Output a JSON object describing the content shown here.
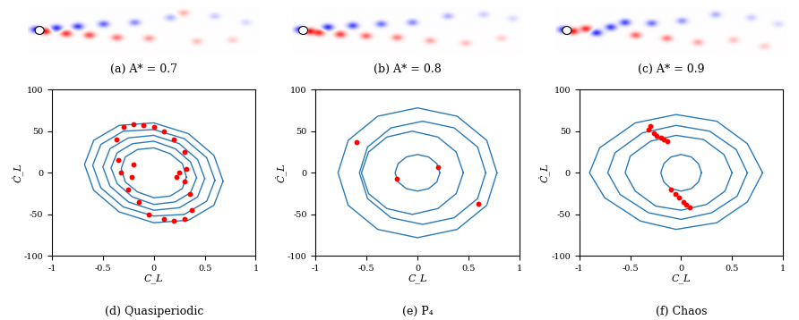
{
  "chart_data": [
    {
      "type": "field",
      "caption": "(a) A* = 0.7",
      "xlim": [
        0,
        26
      ],
      "ylim": [
        -3,
        3
      ],
      "tick_labels": false,
      "cylinder": {
        "x": 1.3,
        "y": 0,
        "radius": 0.5
      },
      "vortices": [
        {
          "x": 0.9,
          "y": 0.1,
          "strength": -0.9
        },
        {
          "x": 1.9,
          "y": -0.1,
          "strength": 1.0
        },
        {
          "x": 3.2,
          "y": 0.3,
          "strength": -0.8
        },
        {
          "x": 4.3,
          "y": -0.4,
          "strength": 0.8
        },
        {
          "x": 5.6,
          "y": 0.5,
          "strength": -0.75
        },
        {
          "x": 6.9,
          "y": -0.6,
          "strength": 0.7
        },
        {
          "x": 8.5,
          "y": 0.8,
          "strength": -0.6
        },
        {
          "x": 10.0,
          "y": -0.9,
          "strength": 0.55
        },
        {
          "x": 12.0,
          "y": 1.0,
          "strength": -0.45
        },
        {
          "x": 13.6,
          "y": -1.0,
          "strength": 0.4
        },
        {
          "x": 16.0,
          "y": 1.6,
          "strength": -0.3
        },
        {
          "x": 17.5,
          "y": 2.2,
          "strength": 0.3
        },
        {
          "x": 19.0,
          "y": -1.4,
          "strength": 0.25
        },
        {
          "x": 21.0,
          "y": 1.8,
          "strength": -0.2
        },
        {
          "x": 23.0,
          "y": -1.2,
          "strength": 0.2
        },
        {
          "x": 24.5,
          "y": 1.0,
          "strength": -0.15
        }
      ]
    },
    {
      "type": "field",
      "caption": "(b) A* = 0.8",
      "xlim": [
        0,
        26
      ],
      "ylim": [
        -3,
        3
      ],
      "tick_labels": false,
      "cylinder": {
        "x": 1.3,
        "y": 0,
        "radius": 0.5
      },
      "vortices": [
        {
          "x": 0.9,
          "y": 0.1,
          "strength": -0.9
        },
        {
          "x": 1.9,
          "y": -0.1,
          "strength": 1.0
        },
        {
          "x": 3.0,
          "y": -0.3,
          "strength": 0.8
        },
        {
          "x": 4.0,
          "y": 0.4,
          "strength": -0.8
        },
        {
          "x": 5.4,
          "y": -0.5,
          "strength": 0.75
        },
        {
          "x": 6.8,
          "y": 0.6,
          "strength": -0.7
        },
        {
          "x": 8.3,
          "y": -0.7,
          "strength": 0.6
        },
        {
          "x": 10.0,
          "y": 0.8,
          "strength": -0.55
        },
        {
          "x": 11.8,
          "y": -0.9,
          "strength": 0.5
        },
        {
          "x": 13.5,
          "y": 1.0,
          "strength": -0.45
        },
        {
          "x": 15.5,
          "y": -1.3,
          "strength": 0.35
        },
        {
          "x": 17.5,
          "y": 1.8,
          "strength": -0.3
        },
        {
          "x": 19.5,
          "y": -1.6,
          "strength": 0.25
        },
        {
          "x": 21.5,
          "y": 2.0,
          "strength": -0.2
        },
        {
          "x": 23.5,
          "y": -1.0,
          "strength": 0.2
        },
        {
          "x": 24.8,
          "y": 1.5,
          "strength": -0.15
        }
      ]
    },
    {
      "type": "field",
      "caption": "(c) A* = 0.9",
      "xlim": [
        0,
        26
      ],
      "ylim": [
        -3,
        3
      ],
      "tick_labels": false,
      "cylinder": {
        "x": 1.3,
        "y": 0,
        "radius": 0.5
      },
      "vortices": [
        {
          "x": 0.9,
          "y": 0.1,
          "strength": -0.9
        },
        {
          "x": 1.9,
          "y": -0.1,
          "strength": 1.0
        },
        {
          "x": 3.4,
          "y": 0.2,
          "strength": 0.85
        },
        {
          "x": 4.6,
          "y": -0.3,
          "strength": -0.8
        },
        {
          "x": 6.2,
          "y": 0.4,
          "strength": -0.75
        },
        {
          "x": 7.8,
          "y": 1.0,
          "strength": -0.7
        },
        {
          "x": 9.0,
          "y": -0.6,
          "strength": 0.6
        },
        {
          "x": 10.8,
          "y": 0.9,
          "strength": -0.55
        },
        {
          "x": 12.5,
          "y": -1.0,
          "strength": 0.5
        },
        {
          "x": 14.2,
          "y": 1.2,
          "strength": -0.4
        },
        {
          "x": 16.0,
          "y": -1.5,
          "strength": 0.35
        },
        {
          "x": 18.0,
          "y": 2.0,
          "strength": -0.3
        },
        {
          "x": 20.0,
          "y": -1.2,
          "strength": 0.25
        },
        {
          "x": 22.0,
          "y": 1.6,
          "strength": -0.2
        },
        {
          "x": 23.5,
          "y": -2.0,
          "strength": 0.2
        },
        {
          "x": 25.0,
          "y": 0.8,
          "strength": -0.15
        }
      ]
    },
    {
      "type": "phase",
      "caption": "(d) Quasiperiodic",
      "x_label": "C_L",
      "y_label": "Ċ_L",
      "xlim": [
        -1,
        1
      ],
      "xticks": [
        -1,
        -0.5,
        0,
        0.5,
        1
      ],
      "ylim": [
        -100,
        100
      ],
      "yticks": [
        -100,
        -50,
        0,
        50,
        100
      ],
      "color": "#2a7ab9",
      "loops": [
        {
          "x": [
            0.68,
            0.59,
            0.34,
            0,
            -0.34,
            -0.59,
            -0.68,
            -0.59,
            -0.34,
            0,
            0.34,
            0.59
          ],
          "y": [
            -10,
            21,
            47,
            60,
            57,
            39,
            10,
            -21,
            -47,
            -60,
            -57,
            -39
          ]
        },
        {
          "x": [
            0.6,
            0.52,
            0.3,
            0,
            -0.3,
            -0.52,
            -0.6,
            -0.52,
            -0.3,
            0,
            0.3,
            0.52
          ],
          "y": [
            -9,
            18,
            41,
            52,
            50,
            34,
            9,
            -18,
            -41,
            -52,
            -50,
            -34
          ]
        },
        {
          "x": [
            0.5,
            0.43,
            0.25,
            0,
            -0.25,
            -0.43,
            -0.5,
            -0.43,
            -0.25,
            0,
            0.25,
            0.43
          ],
          "y": [
            -7,
            16,
            35,
            45,
            42,
            29,
            7,
            -16,
            -35,
            -45,
            -42,
            -29
          ]
        },
        {
          "x": [
            0.42,
            0.36,
            0.21,
            0,
            -0.21,
            -0.36,
            -0.42,
            -0.36,
            -0.21,
            0,
            0.21,
            0.36
          ],
          "y": [
            -6,
            13,
            29,
            38,
            35,
            24,
            6,
            -13,
            -29,
            -38,
            -35,
            -24
          ]
        },
        {
          "x": [
            0.32,
            0.28,
            0.16,
            0,
            -0.16,
            -0.28,
            -0.32,
            -0.28,
            -0.16,
            0,
            0.16,
            0.28
          ],
          "y": [
            -5,
            11,
            23,
            30,
            28,
            19,
            5,
            -11,
            -23,
            -30,
            -28,
            -19
          ]
        }
      ],
      "points": {
        "color": "#ff0000",
        "x": [
          -0.3,
          -0.2,
          -0.1,
          0,
          0.1,
          0.2,
          0.3,
          0.32,
          0.3,
          0.35,
          0.37,
          0.3,
          0.2,
          0.1,
          -0.05,
          -0.15,
          -0.25,
          -0.32,
          -0.35,
          -0.37,
          -0.2,
          -0.22,
          0.22,
          0.25
        ],
        "y": [
          55,
          58,
          57,
          55,
          50,
          40,
          25,
          5,
          -10,
          -25,
          -45,
          -55,
          -58,
          -56,
          -50,
          -35,
          -20,
          0,
          15,
          40,
          10,
          -5,
          -5,
          0
        ]
      }
    },
    {
      "type": "phase",
      "caption": "(e) P₄",
      "x_label": "C_L",
      "y_label": "Ċ_L",
      "xlim": [
        -1,
        1
      ],
      "xticks": [
        -1,
        -0.5,
        0,
        0.5,
        1
      ],
      "ylim": [
        -100,
        100
      ],
      "yticks": [
        -100,
        -50,
        0,
        50,
        100
      ],
      "color": "#2a7ab9",
      "loops": [
        {
          "x": [
            0.78,
            0.68,
            0.39,
            0,
            -0.39,
            -0.68,
            -0.78,
            -0.68,
            -0.39,
            0,
            0.39,
            0.68
          ],
          "y": [
            0,
            39,
            68,
            78,
            68,
            39,
            0,
            -39,
            -68,
            -78,
            -68,
            -39
          ]
        },
        {
          "x": [
            0.67,
            0.59,
            0.36,
            0.05,
            -0.26,
            -0.49,
            -0.57,
            -0.49,
            -0.26,
            0.05,
            0.36,
            0.59
          ],
          "y": [
            0,
            31,
            54,
            62,
            54,
            31,
            0,
            -31,
            -54,
            -62,
            -54,
            -31
          ]
        },
        {
          "x": [
            0.45,
            0.38,
            0.2,
            -0.05,
            -0.3,
            -0.48,
            -0.55,
            -0.48,
            -0.3,
            -0.05,
            0.2,
            0.38
          ],
          "y": [
            0,
            25,
            43,
            50,
            43,
            25,
            0,
            -25,
            -43,
            -50,
            -43,
            -25
          ]
        },
        {
          "x": [
            0.22,
            0.19,
            0.11,
            0,
            -0.11,
            -0.19,
            -0.22,
            -0.19,
            -0.11,
            0,
            0.11,
            0.19
          ],
          "y": [
            0,
            11,
            19,
            22,
            19,
            11,
            0,
            -11,
            -19,
            -22,
            -19,
            -11
          ]
        }
      ],
      "points": {
        "color": "#ff0000",
        "x": [
          -0.6,
          -0.2,
          0.2,
          0.6
        ],
        "y": [
          37,
          -7,
          7,
          -37
        ]
      }
    },
    {
      "type": "phase",
      "caption": "(f) Chaos",
      "x_label": "C_L",
      "y_label": "Ċ_L",
      "xlim": [
        -1,
        1
      ],
      "xticks": [
        -1,
        -0.5,
        0,
        0.5,
        1
      ],
      "ylim": [
        -100,
        100
      ],
      "yticks": [
        -100,
        -50,
        0,
        50,
        100
      ],
      "color": "#2a7ab9",
      "loops": [
        {
          "x": [
            0.8,
            0.65,
            0.35,
            -0.05,
            -0.45,
            -0.8,
            -0.9,
            -0.75,
            -0.4,
            -0.05,
            0.35,
            0.65
          ],
          "y": [
            0,
            35,
            62,
            70,
            60,
            30,
            0,
            -30,
            -58,
            -68,
            -60,
            -35
          ]
        },
        {
          "x": [
            0.65,
            0.54,
            0.28,
            -0.05,
            -0.38,
            -0.65,
            -0.72,
            -0.6,
            -0.32,
            0,
            0.3,
            0.55
          ],
          "y": [
            0,
            28,
            50,
            57,
            48,
            24,
            0,
            -26,
            -48,
            -56,
            -48,
            -28
          ]
        },
        {
          "x": [
            0.5,
            0.42,
            0.22,
            -0.05,
            -0.3,
            -0.5,
            -0.55,
            -0.45,
            -0.25,
            0,
            0.25,
            0.43
          ],
          "y": [
            0,
            22,
            40,
            45,
            38,
            20,
            0,
            -22,
            -40,
            -45,
            -38,
            -22
          ]
        },
        {
          "x": [
            0.2,
            0.17,
            0.1,
            0,
            -0.1,
            -0.17,
            -0.2,
            -0.17,
            -0.1,
            0,
            0.1,
            0.17
          ],
          "y": [
            0,
            11,
            19,
            22,
            19,
            11,
            0,
            -11,
            -19,
            -22,
            -19,
            -11
          ]
        }
      ],
      "points": {
        "color": "#ff0000",
        "x": [
          -0.32,
          -0.3,
          -0.27,
          -0.24,
          -0.2,
          -0.17,
          -0.14,
          -0.1,
          -0.06,
          -0.02,
          0.02,
          0.05,
          0.08
        ],
        "y": [
          52,
          56,
          48,
          44,
          42,
          40,
          38,
          -20,
          -25,
          -30,
          -35,
          -38,
          -42
        ]
      }
    }
  ]
}
